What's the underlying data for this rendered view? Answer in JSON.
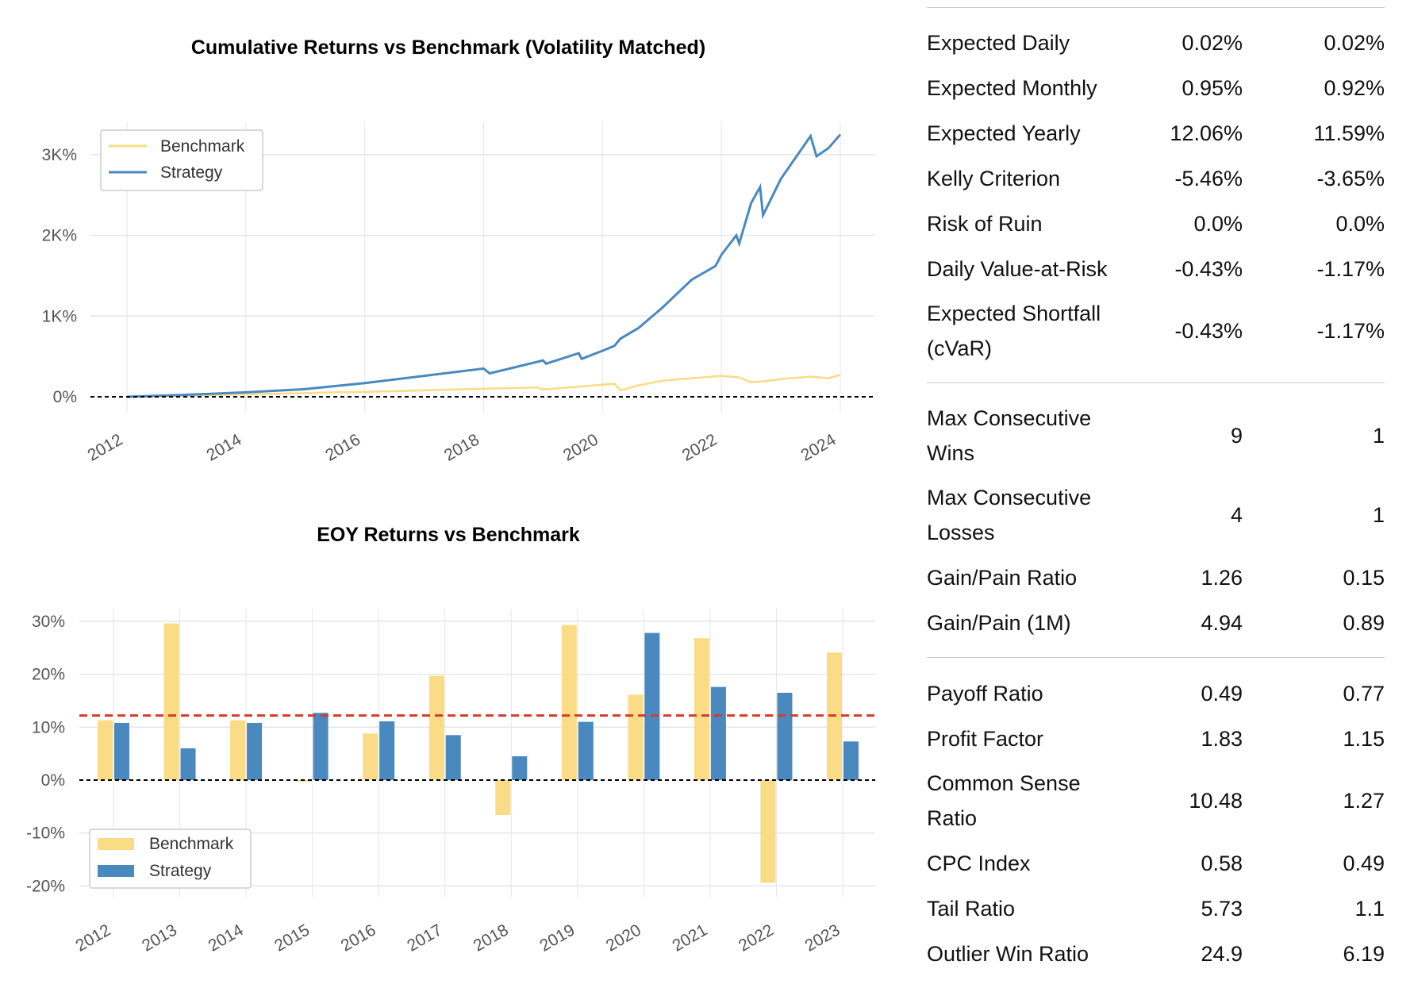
{
  "colors": {
    "benchmark": "#f9dc85",
    "strategy": "#4a89c0",
    "mean_line": "#d63a2a",
    "zero_line": "#000000",
    "grid": "#e6e6e6"
  },
  "chart_data": [
    {
      "type": "line",
      "title": "Cumulative Returns vs Benchmark (Volatility Matched)",
      "xlabel": "",
      "ylabel": "",
      "x_ticks": [
        "2012",
        "2014",
        "2016",
        "2018",
        "2020",
        "2022",
        "2024"
      ],
      "y_ticks": [
        "0%",
        "1K%",
        "2K%",
        "3K%"
      ],
      "y_tick_values": [
        0,
        1000,
        2000,
        3000
      ],
      "xlim": [
        2011.1,
        2024.6
      ],
      "ylim": [
        -350,
        3350
      ],
      "grid": true,
      "legend": "top-left",
      "zero_line": 0,
      "series": [
        {
          "name": "Benchmark",
          "color": "#f9dc85",
          "x": [
            2012,
            2013,
            2014,
            2015,
            2015.5,
            2016,
            2017,
            2018,
            2018.9,
            2019,
            2019.5,
            2020,
            2020.2,
            2020.3,
            2020.6,
            2021,
            2021.5,
            2022,
            2022.3,
            2022.5,
            2022.8,
            2023,
            2023.5,
            2023.8,
            2024
          ],
          "y": [
            0,
            15,
            30,
            45,
            55,
            60,
            80,
            100,
            115,
            90,
            120,
            150,
            160,
            80,
            140,
            200,
            230,
            260,
            240,
            180,
            200,
            220,
            250,
            230,
            270
          ]
        },
        {
          "name": "Strategy",
          "color": "#4a89c0",
          "x": [
            2012,
            2013,
            2014,
            2015,
            2016,
            2017,
            2018,
            2018.1,
            2019,
            2019.05,
            2019.6,
            2019.65,
            2020,
            2020.2,
            2020.3,
            2020.6,
            2021,
            2021.5,
            2021.9,
            2022,
            2022.25,
            2022.3,
            2022.5,
            2022.65,
            2022.7,
            2022.9,
            2023,
            2023.5,
            2023.6,
            2023.8,
            2024
          ],
          "y": [
            0,
            25,
            55,
            95,
            170,
            260,
            350,
            290,
            450,
            410,
            540,
            470,
            570,
            630,
            720,
            850,
            1100,
            1450,
            1620,
            1760,
            2000,
            1900,
            2400,
            2600,
            2250,
            2550,
            2700,
            3230,
            2980,
            3080,
            3250
          ]
        }
      ]
    },
    {
      "type": "bar",
      "title": "EOY Returns  vs Benchmark",
      "xlabel": "",
      "ylabel": "",
      "categories": [
        "2012",
        "2013",
        "2014",
        "2015",
        "2016",
        "2017",
        "2018",
        "2019",
        "2020",
        "2021",
        "2022",
        "2023"
      ],
      "y_ticks": [
        "30%",
        "20%",
        "10%",
        "0%",
        "-10%",
        "-20%"
      ],
      "y_tick_values": [
        30,
        20,
        10,
        0,
        -10,
        -20
      ],
      "ylim": [
        -21.5,
        32
      ],
      "grid": true,
      "legend": "bottom-left",
      "mean_line": 12.2,
      "zero_line": 0,
      "series": [
        {
          "name": "Benchmark",
          "color": "#f9dc85",
          "values": [
            11.3,
            29.6,
            11.3,
            -0.3,
            8.8,
            19.7,
            -6.6,
            29.3,
            16.1,
            26.8,
            -19.4,
            24.1
          ]
        },
        {
          "name": "Strategy",
          "color": "#4a89c0",
          "values": [
            10.8,
            6.0,
            10.8,
            12.7,
            11.1,
            8.5,
            4.5,
            11.0,
            27.8,
            17.6,
            16.5,
            7.3
          ]
        }
      ]
    }
  ],
  "metrics": {
    "sections": [
      [
        {
          "label": "Expected Daily",
          "strategy": "0.02%",
          "benchmark": "0.02%"
        },
        {
          "label": "Expected Monthly",
          "strategy": "0.95%",
          "benchmark": "0.92%"
        },
        {
          "label": "Expected Yearly",
          "strategy": "12.06%",
          "benchmark": "11.59%"
        },
        {
          "label": "Kelly Criterion",
          "strategy": "-5.46%",
          "benchmark": "-3.65%"
        },
        {
          "label": "Risk of Ruin",
          "strategy": "0.0%",
          "benchmark": "0.0%"
        },
        {
          "label": "Daily Value-at-Risk",
          "strategy": "-0.43%",
          "benchmark": "-1.17%"
        },
        {
          "label": "Expected Shortfall (cVaR)",
          "strategy": "-0.43%",
          "benchmark": "-1.17%",
          "double": true
        }
      ],
      [
        {
          "label": "Max Consecutive Wins",
          "strategy": "9",
          "benchmark": "1",
          "double": true
        },
        {
          "label": "Max Consecutive Losses",
          "strategy": "4",
          "benchmark": "1",
          "double": true
        },
        {
          "label": "Gain/Pain Ratio",
          "strategy": "1.26",
          "benchmark": "0.15"
        },
        {
          "label": "Gain/Pain (1M)",
          "strategy": "4.94",
          "benchmark": "0.89"
        }
      ],
      [
        {
          "label": "Payoff Ratio",
          "strategy": "0.49",
          "benchmark": "0.77"
        },
        {
          "label": "Profit Factor",
          "strategy": "1.83",
          "benchmark": "1.15"
        },
        {
          "label": "Common Sense Ratio",
          "strategy": "10.48",
          "benchmark": "1.27",
          "double": true
        },
        {
          "label": "CPC Index",
          "strategy": "0.58",
          "benchmark": "0.49"
        },
        {
          "label": "Tail Ratio",
          "strategy": "5.73",
          "benchmark": "1.1"
        },
        {
          "label": "Outlier Win Ratio",
          "strategy": "24.9",
          "benchmark": "6.19"
        }
      ]
    ]
  }
}
